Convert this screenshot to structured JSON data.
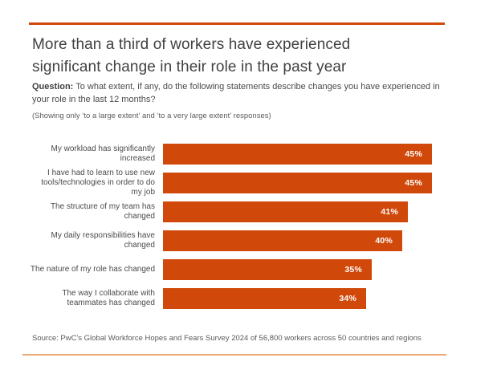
{
  "header": {
    "title_line1": "More than a third of workers have experienced",
    "title_line2": "significant change in their role in the past year",
    "question_label": "Question:",
    "question_text": "To what extent, if any, do the following statements describe changes you have experienced in your role in the last 12 months?",
    "note": "(Showing only ‘to a large extent’ and ‘to a very large extent’ responses)"
  },
  "chart_data": {
    "type": "bar",
    "orientation": "horizontal",
    "categories": [
      "My workload has significantly increased",
      "I have had to learn to use new tools/technologies in order to do my job",
      "The structure of my team has changed",
      "My daily responsibilities have changed",
      "The nature of my role has changed",
      "The way I collaborate with teammates has changed"
    ],
    "values": [
      45,
      45,
      41,
      40,
      35,
      34
    ],
    "value_labels": [
      "45%",
      "45%",
      "41%",
      "40%",
      "35%",
      "34%"
    ],
    "unit": "%",
    "title": "",
    "xlabel": "",
    "ylabel": "",
    "xlim": [
      0,
      47
    ],
    "grid": false,
    "legend": false,
    "bar_color": "#D0490B",
    "value_label_color": "#FFFFFF"
  },
  "footer": {
    "source": "Source: PwC's Global Workforce Hopes and Fears Survey 2024 of 56,800 workers across 50 countries and regions"
  },
  "colors": {
    "accent": "#D0490B",
    "bottom_rule": "#EBA878",
    "title_text": "#414141",
    "body_text": "#4A4A4A",
    "muted_text": "#5B5B5B"
  }
}
